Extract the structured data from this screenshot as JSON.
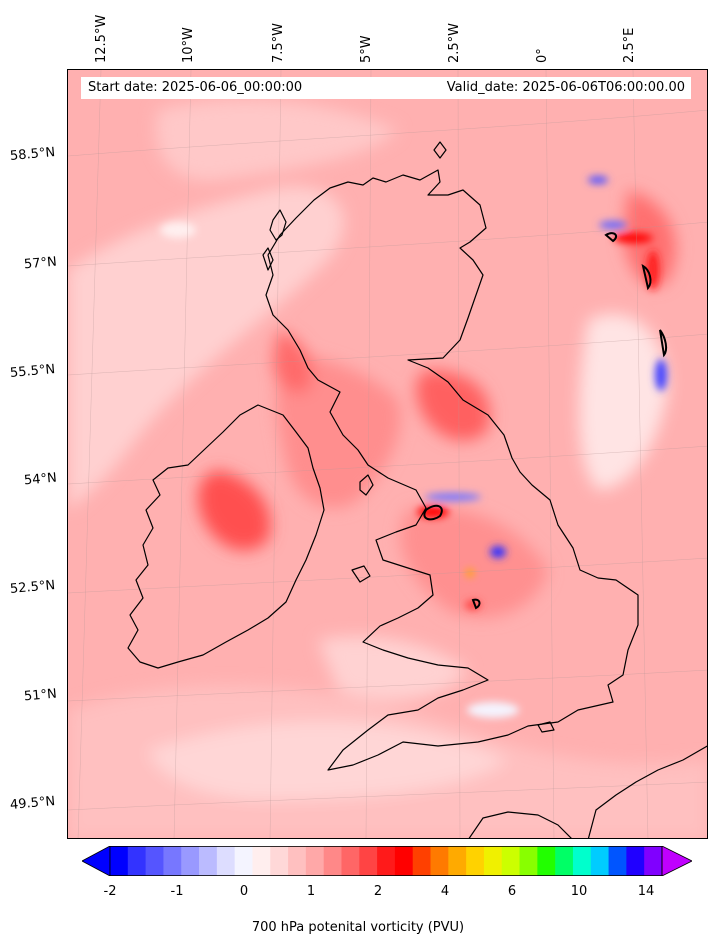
{
  "map": {
    "start_date": "Start date: 2025-06-06_00:00:00",
    "valid_date": "Valid_date: 2025-06-06T06:00:00.00",
    "lon_labels": [
      "12.5°W",
      "10°W",
      "7.5°W",
      "5°W",
      "2.5°W",
      "0°",
      "2.5°E"
    ],
    "lat_labels": [
      "58.5°N",
      "57°N",
      "55.5°N",
      "54°N",
      "52.5°N",
      "51°N",
      "49.5°N"
    ],
    "colors": {
      "background_pv": "#ffb8b8",
      "coastline": "#000000"
    }
  },
  "colorbar": {
    "label": "700 hPa potenital vorticity (PVU)",
    "tick_labels": [
      "-2",
      "-1",
      "0",
      "1",
      "2",
      "4",
      "6",
      "10",
      "14"
    ],
    "colors": [
      "#0000ff",
      "#3333ff",
      "#5555ff",
      "#7777ff",
      "#9999ff",
      "#bbbbff",
      "#ddddff",
      "#f4f4ff",
      "#ffeeee",
      "#ffd8d8",
      "#ffc0c0",
      "#ffa8a8",
      "#ff8888",
      "#ff6666",
      "#ff4444",
      "#ff1a1a",
      "#ff0000",
      "#ff4000",
      "#ff7a00",
      "#ffaa00",
      "#ffd200",
      "#f0f000",
      "#ccff00",
      "#88ff00",
      "#22ff00",
      "#00ff66",
      "#00ffcc",
      "#00ccff",
      "#0055ff",
      "#2000ff",
      "#8000ff"
    ],
    "under_color": "#0000ff",
    "over_color": "#c000ff"
  }
}
